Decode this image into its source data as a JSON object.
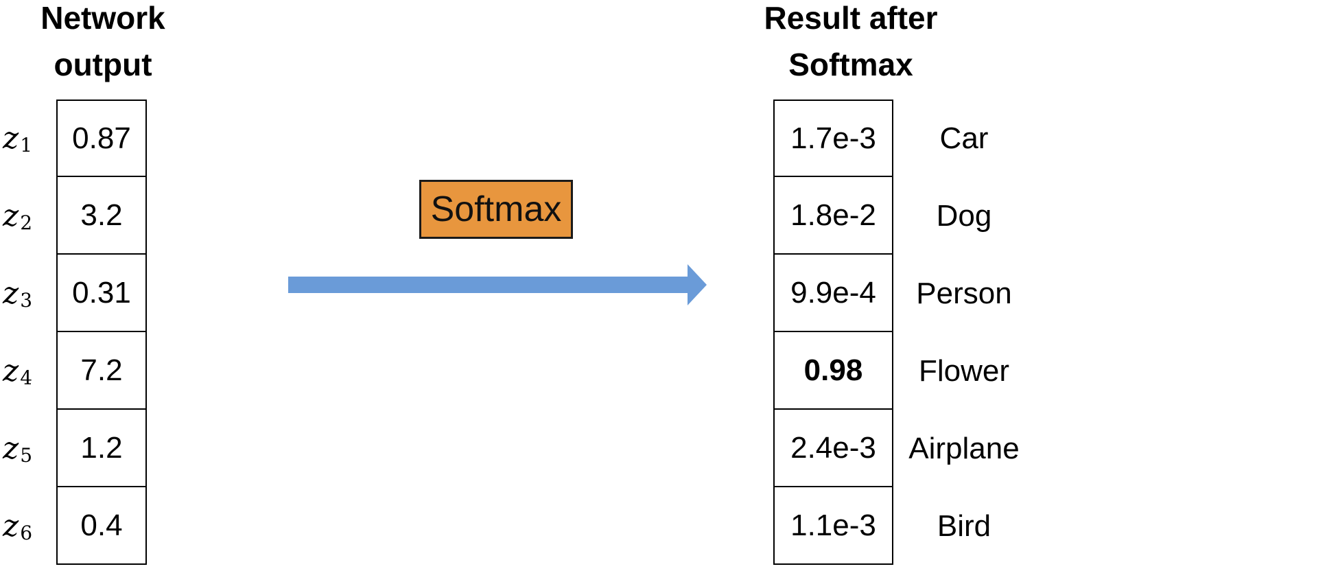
{
  "left_heading": [
    "Network",
    "output"
  ],
  "right_heading": [
    "Result after",
    "Softmax"
  ],
  "softmax_label": "Softmax",
  "colors": {
    "softmax_box": "#e8963e",
    "arrow": "#6a9bd8"
  },
  "rows": [
    {
      "z": "z",
      "sub": "1",
      "input": "0.87",
      "output": "1.7e-3",
      "class": "Car"
    },
    {
      "z": "z",
      "sub": "2",
      "input": "3.2",
      "output": "1.8e-2",
      "class": "Dog"
    },
    {
      "z": "z",
      "sub": "3",
      "input": "0.31",
      "output": "9.9e-4",
      "class": "Person"
    },
    {
      "z": "z",
      "sub": "4",
      "input": "7.2",
      "output": "0.98",
      "class": "Flower",
      "highlight": true
    },
    {
      "z": "z",
      "sub": "5",
      "input": "1.2",
      "output": "2.4e-3",
      "class": "Airplane"
    },
    {
      "z": "z",
      "sub": "6",
      "input": "0.4",
      "output": "1.1e-3",
      "class": "Bird"
    }
  ]
}
